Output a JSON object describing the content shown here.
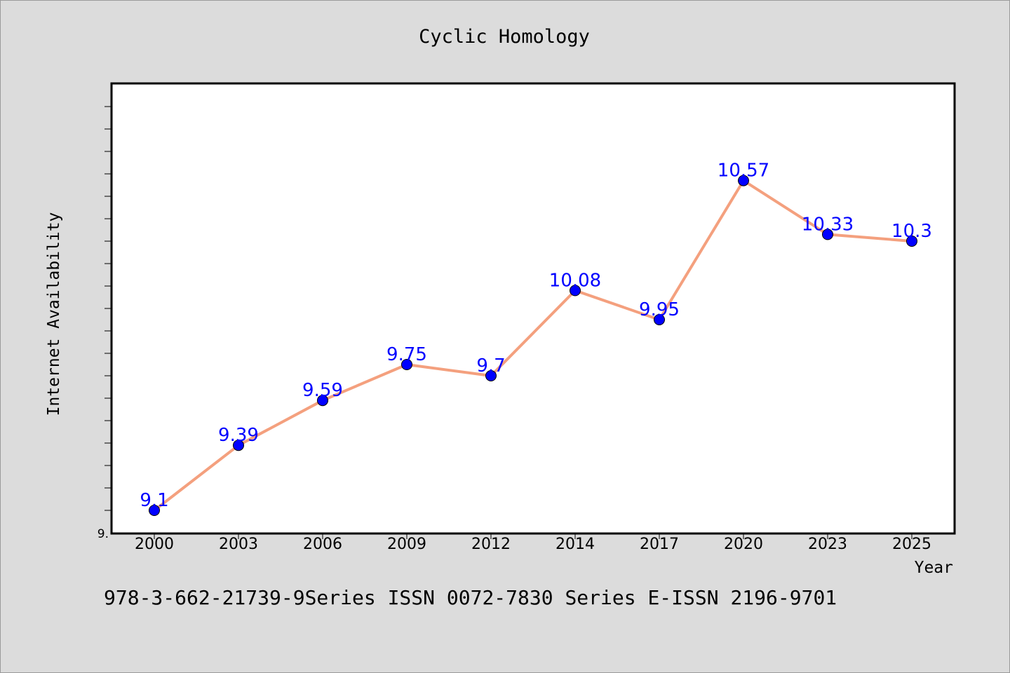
{
  "chart_data": {
    "type": "line",
    "title": "Cyclic Homology",
    "xlabel": "Year",
    "ylabel": "Internet Availability",
    "categories": [
      "2000",
      "2003",
      "2006",
      "2009",
      "2012",
      "2014",
      "2017",
      "2020",
      "2023",
      "2025"
    ],
    "series": [
      {
        "values": [
          9.1,
          9.39,
          9.59,
          9.75,
          9.7,
          10.08,
          9.95,
          10.57,
          10.33,
          10.3
        ],
        "data_labels": [
          "9.1",
          "9.39",
          "9.59",
          "9.75",
          "9.7",
          "10.08",
          "9.95",
          "10.57",
          "10.33",
          "10.3"
        ]
      }
    ],
    "y_tick_label": "9.",
    "ylim": [
      9.0,
      11.0
    ],
    "y_minor_tick_step": 0.1,
    "grid": false,
    "colors": {
      "line": "#f4a07e",
      "marker": "#0000ff",
      "data_label": "#0000ff"
    }
  },
  "footer": {
    "text": "978-3-662-21739-9Series ISSN 0072-7830 Series E-ISSN 2196-9701"
  }
}
